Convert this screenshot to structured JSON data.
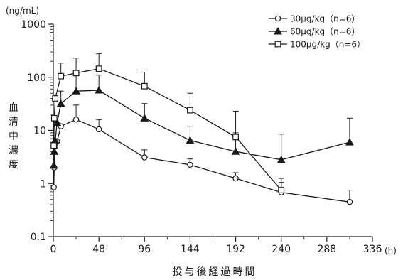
{
  "chart_data": {
    "type": "line",
    "x_unit": "(h)",
    "y_unit": "(ng/mL)",
    "xlabel": "投与後経過時間",
    "ylabel": "血清中濃度",
    "xlim": [
      0,
      336
    ],
    "ylim": [
      0.1,
      1000
    ],
    "y_scale": "log",
    "x_ticks": [
      0,
      48,
      96,
      144,
      192,
      240,
      288,
      336
    ],
    "y_ticks": [
      {
        "value": 0.1,
        "label": "0.1"
      },
      {
        "value": 1,
        "label": "1"
      },
      {
        "value": 10,
        "label": "10"
      },
      {
        "value": 100,
        "label": "100"
      },
      {
        "value": 1000,
        "label": "1000"
      }
    ],
    "grid": false,
    "legend_position": "top-right",
    "series": [
      {
        "name": "30μg/kg（n=6）",
        "marker": "circle-open",
        "points": [
          {
            "x": 0.5,
            "y": 0.85
          },
          {
            "x": 1,
            "y": 2.0
          },
          {
            "x": 2,
            "y": 5.0
          },
          {
            "x": 4,
            "y": 6.2
          },
          {
            "x": 8,
            "y": 12.0
          },
          {
            "x": 24,
            "y": 16.0,
            "err": 30.0
          },
          {
            "x": 48,
            "y": 10.5,
            "err": 16.0
          },
          {
            "x": 96,
            "y": 3.1,
            "err": 4.3
          },
          {
            "x": 144,
            "y": 2.25,
            "err": 2.9
          },
          {
            "x": 192,
            "y": 1.25,
            "err": 1.6
          },
          {
            "x": 240,
            "y": 0.68,
            "err": 1.05
          },
          {
            "x": 312,
            "y": 0.45,
            "err": 0.75
          }
        ]
      },
      {
        "name": "60μg/kg（n=6）",
        "marker": "triangle-filled",
        "points": [
          {
            "x": 0.5,
            "y": 2.2
          },
          {
            "x": 1,
            "y": 4.0
          },
          {
            "x": 2,
            "y": 6.5
          },
          {
            "x": 4,
            "y": 14.0
          },
          {
            "x": 8,
            "y": 32.0,
            "err": 55.0
          },
          {
            "x": 24,
            "y": 55.0,
            "err": 110.0
          },
          {
            "x": 48,
            "y": 57.0,
            "err": 110.0
          },
          {
            "x": 96,
            "y": 17.0,
            "err": 32.0
          },
          {
            "x": 144,
            "y": 6.5,
            "err": 12.0
          },
          {
            "x": 192,
            "y": 4.0,
            "err": 9.0
          },
          {
            "x": 240,
            "y": 2.8,
            "err": 8.5
          },
          {
            "x": 312,
            "y": 6.0,
            "err": 17.0
          }
        ]
      },
      {
        "name": "100μg/kg（n=6）",
        "marker": "square-open",
        "points": [
          {
            "x": 0.5,
            "y": 5.2
          },
          {
            "x": 1,
            "y": 17.0
          },
          {
            "x": 2,
            "y": 40.0
          },
          {
            "x": 8,
            "y": 105.0,
            "err": 185.0
          },
          {
            "x": 24,
            "y": 120.0,
            "err": 230.0
          },
          {
            "x": 48,
            "y": 145.0,
            "err": 280.0
          },
          {
            "x": 96,
            "y": 68.0,
            "err": 125.0
          },
          {
            "x": 144,
            "y": 24.0,
            "err": 50.0
          },
          {
            "x": 192,
            "y": 7.5,
            "err": 23.0
          },
          {
            "x": 240,
            "y": 0.75,
            "err": 1.25
          }
        ]
      }
    ]
  }
}
